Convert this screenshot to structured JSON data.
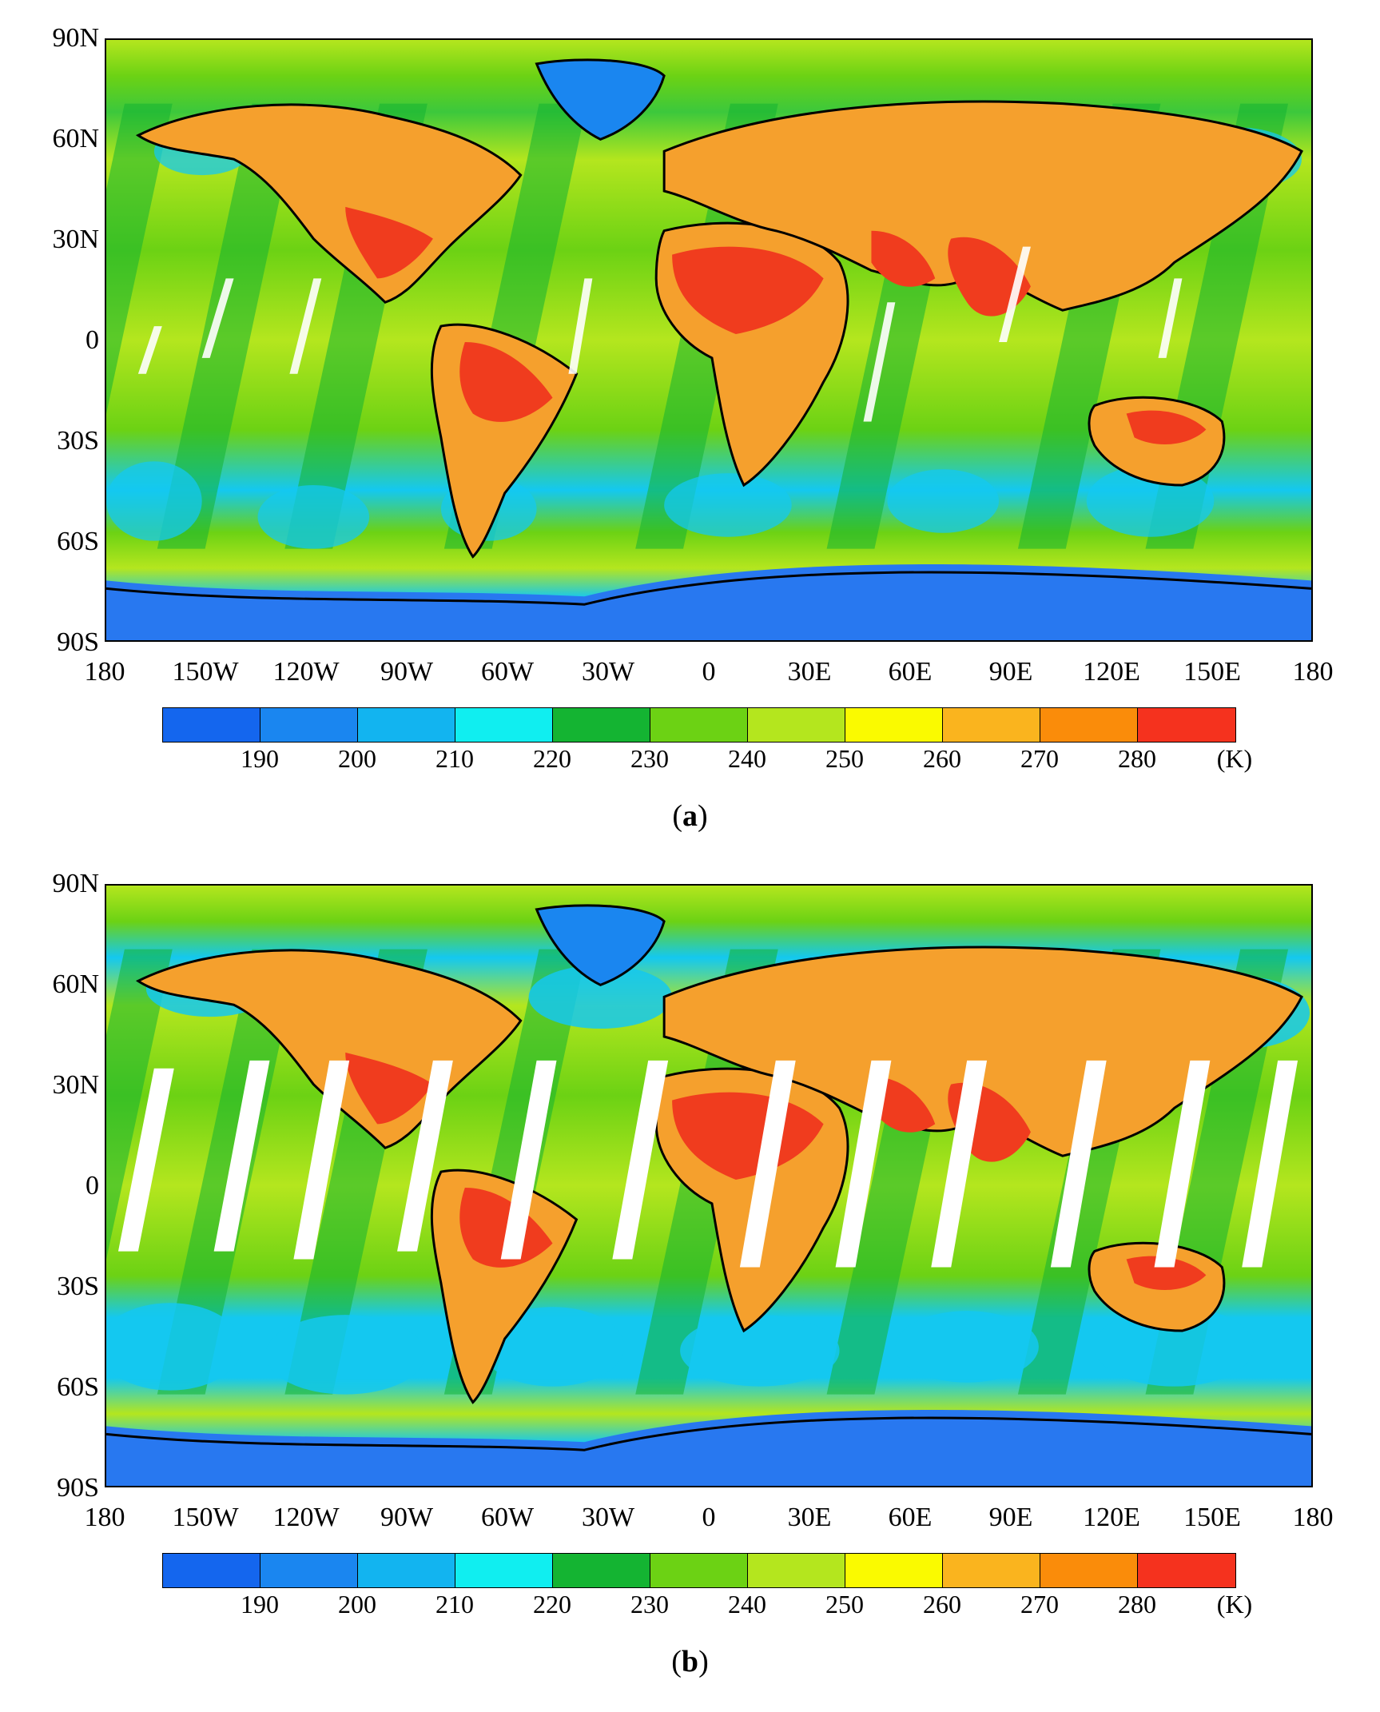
{
  "panels": [
    {
      "id": "a",
      "caption_open": "(",
      "caption_letter": "a",
      "caption_close": ")"
    },
    {
      "id": "b",
      "caption_open": "(",
      "caption_letter": "b",
      "caption_close": ")"
    }
  ],
  "axes": {
    "lat_labels": [
      "90N",
      "60N",
      "30N",
      "0",
      "30S",
      "60S",
      "90S"
    ],
    "lon_labels": [
      "180",
      "150W",
      "120W",
      "90W",
      "60W",
      "30W",
      "0",
      "30E",
      "60E",
      "90E",
      "120E",
      "150E",
      "180"
    ]
  },
  "colorbar": {
    "unit": "(K)",
    "tick_labels": [
      "190",
      "200",
      "210",
      "220",
      "230",
      "240",
      "250",
      "260",
      "270",
      "280"
    ],
    "colors": [
      "#1466ee",
      "#1a86f0",
      "#12b4f0",
      "#10eef0",
      "#14b432",
      "#6cd214",
      "#b4e61e",
      "#fafa00",
      "#fab41e",
      "#fa8c0a",
      "#f5321e"
    ]
  },
  "colors": {
    "ocean_cold": "#14c8f0",
    "ocean_mid": "#3cc83c",
    "ocean_warm": "#c8e628",
    "land_warm": "#f5a02d",
    "land_hot": "#f03c1e",
    "antarctica": "#2878f0",
    "coastline": "#000000",
    "swath_gap": "#ffffff"
  }
}
